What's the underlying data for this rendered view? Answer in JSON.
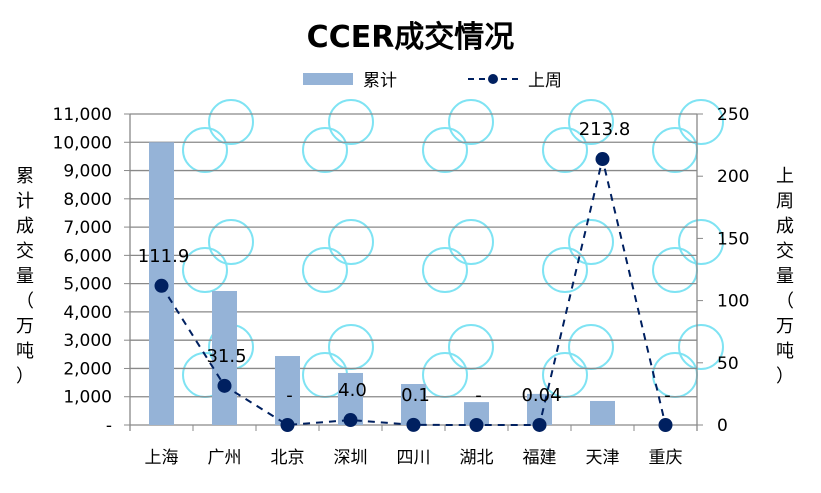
{
  "chart_data": {
    "type": "bar+line",
    "title": "CCER成交情况",
    "categories": [
      "上海",
      "广州",
      "北京",
      "深圳",
      "四川",
      "湖北",
      "福建",
      "天津",
      "重庆"
    ],
    "series": [
      {
        "name": "累计",
        "type": "bar",
        "axis": "left",
        "color": "#95b3d7",
        "values": [
          10000,
          4740,
          2440,
          1840,
          1450,
          810,
          1100,
          850,
          0
        ]
      },
      {
        "name": "上周",
        "type": "line",
        "style": "dashed with circle markers",
        "axis": "right",
        "color": "#002060",
        "values": [
          111.9,
          31.5,
          0,
          4.0,
          0.1,
          0,
          0.04,
          213.8,
          0
        ],
        "data_labels": [
          "111.9",
          "31.5",
          "-",
          "4.0",
          "0.1",
          "-",
          "0.04",
          "213.8",
          "-"
        ]
      }
    ],
    "ylabel": "累计成交量（万吨）",
    "ylabel_right": "上周成交量（万吨）",
    "ylim": [
      0,
      11000
    ],
    "ylim_right": [
      0,
      250
    ],
    "yticks": [
      "-",
      "1,000",
      "2,000",
      "3,000",
      "4,000",
      "5,000",
      "6,000",
      "7,000",
      "8,000",
      "9,000",
      "10,000",
      "11,000"
    ],
    "yticks_right": [
      "0",
      "50",
      "100",
      "150",
      "200",
      "250"
    ],
    "grid": true,
    "legend_position": "top"
  },
  "legend": {
    "bar_label": "累计",
    "line_label": "上周"
  },
  "axis_titles": {
    "left": [
      "累",
      "计",
      "成",
      "交",
      "量",
      "（",
      "万",
      "吨",
      "）"
    ],
    "right": [
      "上",
      "周",
      "成",
      "交",
      "量",
      "（",
      "万",
      "吨",
      "）"
    ]
  },
  "colors": {
    "bar": "#95b3d7",
    "line": "#002060",
    "grid": "#898989",
    "watermark": "#7fe3f3"
  }
}
